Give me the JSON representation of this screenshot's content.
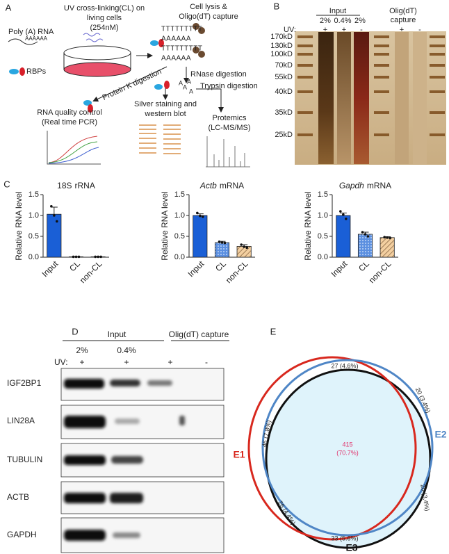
{
  "panel_a": {
    "letter": "A",
    "uv": [
      "UV cross-linking(CL) on",
      "living cells",
      "(254nM)"
    ],
    "lysis": [
      "Cell lysis &",
      "Oligo(dT) capture"
    ],
    "poly_a": "Poly (A) RNA",
    "poly_a_tail": "AAAAAA",
    "rbps": "RBPs",
    "capture_rows": [
      "TTTTTTTTT",
      "AAAAAA",
      "TTTTTTTTT",
      "AAAAAA"
    ],
    "rnase": "RNase digestion",
    "protein_k": "Protein K digestion",
    "trypsin": "Trypsin digestion",
    "cleaved": [
      "A",
      "A",
      "A",
      "A"
    ],
    "qc": [
      "RNA quality control",
      "(Real time PCR)"
    ],
    "silver": [
      "Silver staining and",
      "western blot"
    ],
    "proteomics": [
      "Protemics",
      "(LC-MS/MS)"
    ]
  },
  "panel_b": {
    "letter": "B",
    "input": "Input",
    "capture": [
      "Olig(dT)",
      "capture"
    ],
    "amounts": [
      "2%",
      "0.4%",
      "2%"
    ],
    "uv": "UV:",
    "uv_signs": [
      "+",
      "+",
      "-",
      "+",
      "-"
    ],
    "markers": [
      "170kD",
      "130kD",
      "100kD",
      "70kD",
      "55kD",
      "40kD",
      "35kD",
      "25kD"
    ]
  },
  "panel_c": {
    "letter": "C"
  },
  "chart_data": [
    {
      "type": "bar",
      "title_parts": [
        {
          "text": "18S",
          "italic": false
        },
        {
          "text": "rRNA",
          "italic": false
        }
      ],
      "ylabel": "Relative RNA level",
      "categories": [
        "Input",
        "CL",
        "non-CL"
      ],
      "values": [
        1.03,
        0.01,
        0.01
      ],
      "errors": [
        0.17,
        0.005,
        0.005
      ],
      "points": [
        [
          1.22,
          1.0,
          0.86
        ],
        [
          0.01,
          0.01,
          0.01
        ],
        [
          0.01,
          0.01,
          0.01
        ]
      ],
      "colors": [
        "#1a5fd6",
        "#5b8fe0",
        "#f3cfa0"
      ],
      "patterns": [
        "solid",
        "dots",
        "hatch"
      ],
      "ylim": [
        0,
        1.5
      ],
      "yticks": [
        {
          "value": 0,
          "label": "0.0"
        },
        {
          "value": 0.5,
          "label": "0.5"
        },
        {
          "value": 1,
          "label": "1.0"
        },
        {
          "value": 1.5,
          "label": "1.5"
        }
      ]
    },
    {
      "type": "bar",
      "title_parts": [
        {
          "text": "Actb",
          "italic": true
        },
        {
          "text": "mRNA",
          "italic": false
        }
      ],
      "ylabel": "Relative RNA level",
      "categories": [
        "Input",
        "CL",
        "non-CL"
      ],
      "values": [
        1.0,
        0.35,
        0.26
      ],
      "errors": [
        0.04,
        0.03,
        0.04
      ],
      "points": [
        [
          1.06,
          0.99,
          0.97
        ],
        [
          0.37,
          0.35,
          0.34
        ],
        [
          0.3,
          0.25,
          0.23
        ]
      ],
      "colors": [
        "#1a5fd6",
        "#5b8fe0",
        "#f3cfa0"
      ],
      "patterns": [
        "solid",
        "dots",
        "hatch"
      ],
      "ylim": [
        0,
        1.5
      ],
      "yticks": [
        {
          "value": 0,
          "label": "0.0"
        },
        {
          "value": 0.5,
          "label": "0.5"
        },
        {
          "value": 1,
          "label": "1.0"
        },
        {
          "value": 1.5,
          "label": "1.5"
        }
      ]
    },
    {
      "type": "bar",
      "title_parts": [
        {
          "text": "Gapdh",
          "italic": true
        },
        {
          "text": "mRNA",
          "italic": false
        }
      ],
      "ylabel": "Relative RNA level",
      "categories": [
        "Input",
        "CL",
        "non-CL"
      ],
      "values": [
        1.0,
        0.55,
        0.47
      ],
      "errors": [
        0.06,
        0.05,
        0.02
      ],
      "points": [
        [
          1.1,
          1.02,
          0.92
        ],
        [
          0.6,
          0.55,
          0.5
        ],
        [
          0.48,
          0.47,
          0.46
        ]
      ],
      "colors": [
        "#1a5fd6",
        "#5b8fe0",
        "#f3cfa0"
      ],
      "patterns": [
        "solid",
        "dots",
        "hatch"
      ],
      "ylim": [
        0,
        1.5
      ],
      "yticks": [
        {
          "value": 0,
          "label": "0.0"
        },
        {
          "value": 0.5,
          "label": "0.5"
        },
        {
          "value": 1,
          "label": "1.0"
        },
        {
          "value": 1.5,
          "label": "1.5"
        }
      ]
    }
  ],
  "panel_d": {
    "letter": "D",
    "input": "Input",
    "capture": "Olig(dT) capture",
    "amounts": [
      "2%",
      "0.4%"
    ],
    "uv": "UV:",
    "uv_signs": [
      "+",
      "+",
      "+",
      "-"
    ],
    "proteins": [
      "IGF2BP1",
      "LIN28A",
      "TUBULIN",
      "ACTB",
      "GAPDH"
    ]
  },
  "panel_e": {
    "letter": "E",
    "sets": [
      "E1",
      "E2",
      "E3"
    ],
    "regions": [
      "27 (4.6%)",
      "46 (7.8%)",
      "20 (3.4%)",
      "20 (3.4%)",
      "26 (4.4%)",
      "33 (5.6%)"
    ],
    "center": [
      "415",
      "(70.7%)"
    ]
  }
}
